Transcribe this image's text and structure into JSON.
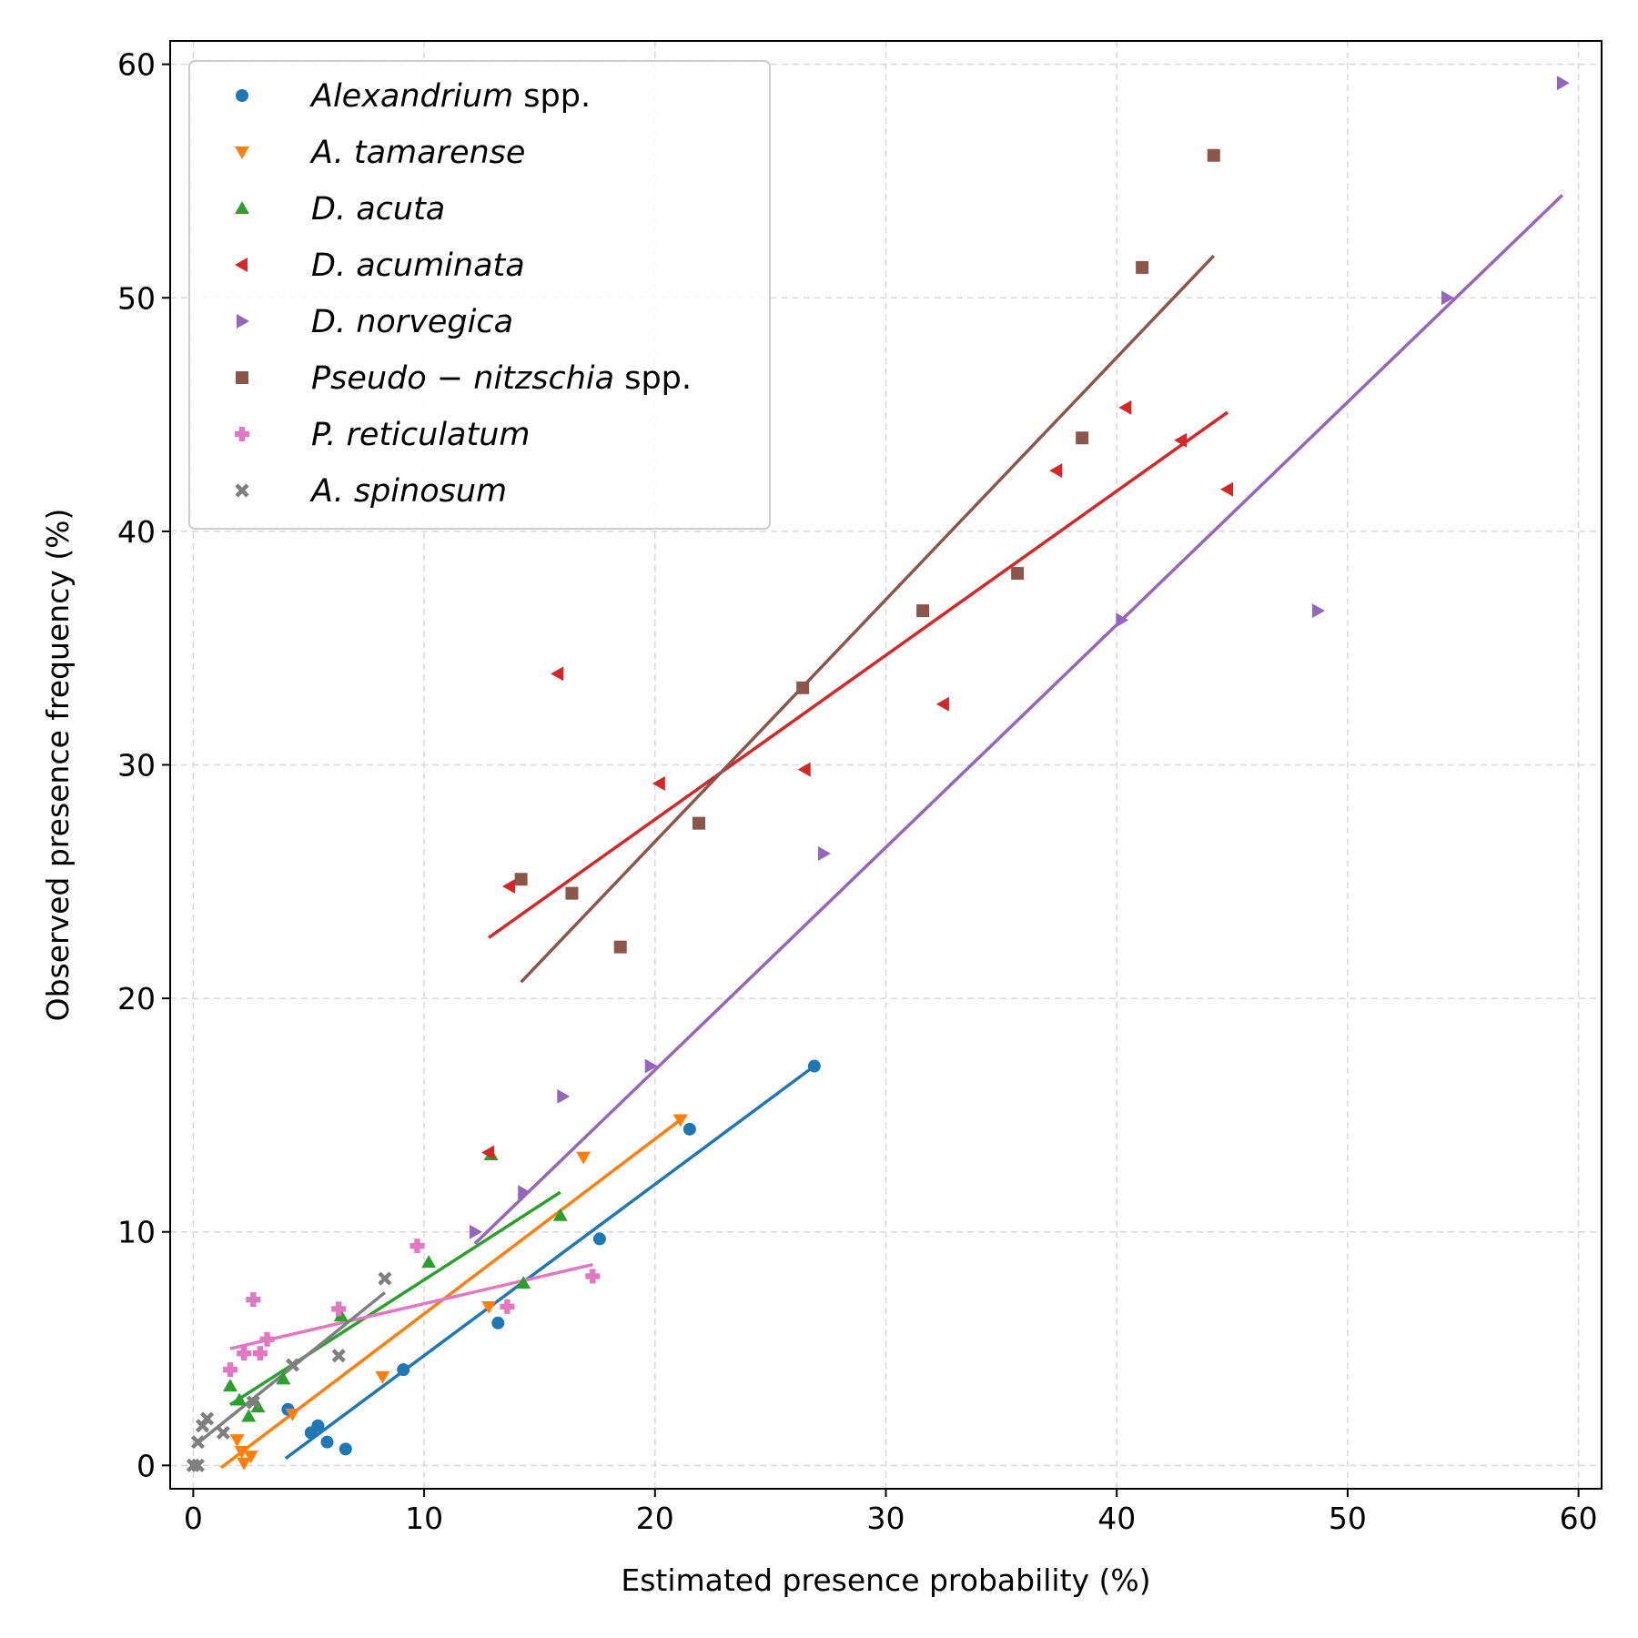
{
  "chart_data": {
    "type": "scatter",
    "xlabel": "Estimated presence probability (%)",
    "ylabel": "Observed presence frequency (%)",
    "xlim": [
      -1,
      61
    ],
    "ylim": [
      -1,
      61
    ],
    "xticks": [
      0,
      10,
      20,
      30,
      40,
      50,
      60
    ],
    "yticks": [
      0,
      10,
      20,
      30,
      40,
      50,
      60
    ],
    "grid": true,
    "legend_position": "top-left",
    "series": [
      {
        "name": "Alexandrium spp.",
        "name_parts": [
          {
            "text": "Alexandrium",
            "italic": true
          },
          {
            "text": " spp.",
            "italic": false
          }
        ],
        "color": "#1f77b4",
        "marker": "circle",
        "points": [
          [
            4.1,
            2.4
          ],
          [
            5.1,
            1.4
          ],
          [
            5.4,
            1.7
          ],
          [
            5.8,
            1.0
          ],
          [
            6.6,
            0.7
          ],
          [
            9.1,
            4.1
          ],
          [
            13.2,
            6.1
          ],
          [
            17.6,
            9.7
          ],
          [
            21.5,
            14.4
          ],
          [
            26.9,
            17.1
          ]
        ],
        "fit": [
          [
            4.0,
            0.3
          ],
          [
            26.9,
            17.1
          ]
        ]
      },
      {
        "name": "A. tamarense",
        "name_parts": [
          {
            "text": "A. tamarense",
            "italic": true
          }
        ],
        "color": "#ff7f0e",
        "marker": "triangle-down",
        "points": [
          [
            1.9,
            1.1
          ],
          [
            2.1,
            0.6
          ],
          [
            2.2,
            0.1
          ],
          [
            2.5,
            0.4
          ],
          [
            4.3,
            2.2
          ],
          [
            8.2,
            3.8
          ],
          [
            12.8,
            6.8
          ],
          [
            16.9,
            13.2
          ],
          [
            21.1,
            14.8
          ]
        ],
        "fit": [
          [
            1.2,
            -0.1
          ],
          [
            21.1,
            14.8
          ]
        ]
      },
      {
        "name": "D. acuta",
        "name_parts": [
          {
            "text": "D. acuta",
            "italic": true
          }
        ],
        "color": "#2ca02c",
        "marker": "triangle-up",
        "points": [
          [
            1.6,
            3.4
          ],
          [
            2.0,
            2.8
          ],
          [
            2.4,
            2.1
          ],
          [
            2.8,
            2.5
          ],
          [
            3.9,
            3.7
          ],
          [
            6.4,
            6.4
          ],
          [
            10.2,
            8.7
          ],
          [
            12.9,
            13.3
          ],
          [
            14.3,
            7.8
          ],
          [
            15.9,
            10.7
          ]
        ],
        "fit": [
          [
            1.6,
            2.6
          ],
          [
            15.9,
            11.7
          ]
        ]
      },
      {
        "name": "D. acuminata",
        "name_parts": [
          {
            "text": "D. acuminata",
            "italic": true
          }
        ],
        "color": "#d62728",
        "marker": "triangle-left",
        "points": [
          [
            12.8,
            13.4
          ],
          [
            13.7,
            24.8
          ],
          [
            15.8,
            33.9
          ],
          [
            20.2,
            29.2
          ],
          [
            26.5,
            29.8
          ],
          [
            32.5,
            32.6
          ],
          [
            37.4,
            42.6
          ],
          [
            40.4,
            45.3
          ],
          [
            42.8,
            43.9
          ],
          [
            44.8,
            41.8
          ]
        ],
        "fit": [
          [
            12.8,
            22.6
          ],
          [
            44.8,
            45.1
          ]
        ]
      },
      {
        "name": "D. norvegica",
        "name_parts": [
          {
            "text": "D. norvegica",
            "italic": true
          }
        ],
        "color": "#9467bd",
        "marker": "triangle-right",
        "points": [
          [
            12.2,
            10.0
          ],
          [
            14.3,
            11.7
          ],
          [
            16.0,
            15.8
          ],
          [
            19.8,
            17.1
          ],
          [
            27.3,
            26.2
          ],
          [
            40.2,
            36.2
          ],
          [
            48.7,
            36.6
          ],
          [
            54.3,
            50.0
          ],
          [
            59.3,
            59.2
          ]
        ],
        "fit": [
          [
            12.2,
            9.5
          ],
          [
            59.3,
            54.4
          ]
        ]
      },
      {
        "name": "Pseudo−nitzschia spp.",
        "name_parts": [
          {
            "text": "Pseudo − nitzschia",
            "italic": true
          },
          {
            "text": " spp.",
            "italic": false
          }
        ],
        "color": "#8c564b",
        "marker": "square",
        "points": [
          [
            14.2,
            25.1
          ],
          [
            16.4,
            24.5
          ],
          [
            18.5,
            22.2
          ],
          [
            21.9,
            27.5
          ],
          [
            26.4,
            33.3
          ],
          [
            31.6,
            36.6
          ],
          [
            35.7,
            38.2
          ],
          [
            38.5,
            44.0
          ],
          [
            41.1,
            51.3
          ],
          [
            44.2,
            56.1
          ]
        ],
        "fit": [
          [
            14.2,
            20.7
          ],
          [
            44.2,
            51.8
          ]
        ]
      },
      {
        "name": "P. reticulatum",
        "name_parts": [
          {
            "text": "P. reticulatum",
            "italic": true
          }
        ],
        "color": "#e377c2",
        "marker": "plus",
        "points": [
          [
            1.6,
            4.1
          ],
          [
            2.2,
            4.8
          ],
          [
            2.6,
            7.1
          ],
          [
            2.9,
            4.8
          ],
          [
            3.2,
            5.4
          ],
          [
            6.3,
            6.7
          ],
          [
            9.7,
            9.4
          ],
          [
            13.6,
            6.8
          ],
          [
            17.3,
            8.1
          ]
        ],
        "fit": [
          [
            1.6,
            5.0
          ],
          [
            17.3,
            8.6
          ]
        ]
      },
      {
        "name": "A. spinosum",
        "name_parts": [
          {
            "text": "A. spinosum",
            "italic": true
          }
        ],
        "color": "#7f7f7f",
        "marker": "x",
        "points": [
          [
            0.0,
            0.0
          ],
          [
            0.2,
            0.0
          ],
          [
            0.2,
            1.0
          ],
          [
            0.4,
            1.7
          ],
          [
            0.6,
            2.0
          ],
          [
            1.3,
            1.4
          ],
          [
            2.6,
            2.7
          ],
          [
            4.3,
            4.3
          ],
          [
            6.3,
            4.7
          ],
          [
            8.3,
            8.0
          ]
        ],
        "fit": [
          [
            0.0,
            0.8
          ],
          [
            8.3,
            7.4
          ]
        ]
      }
    ]
  }
}
